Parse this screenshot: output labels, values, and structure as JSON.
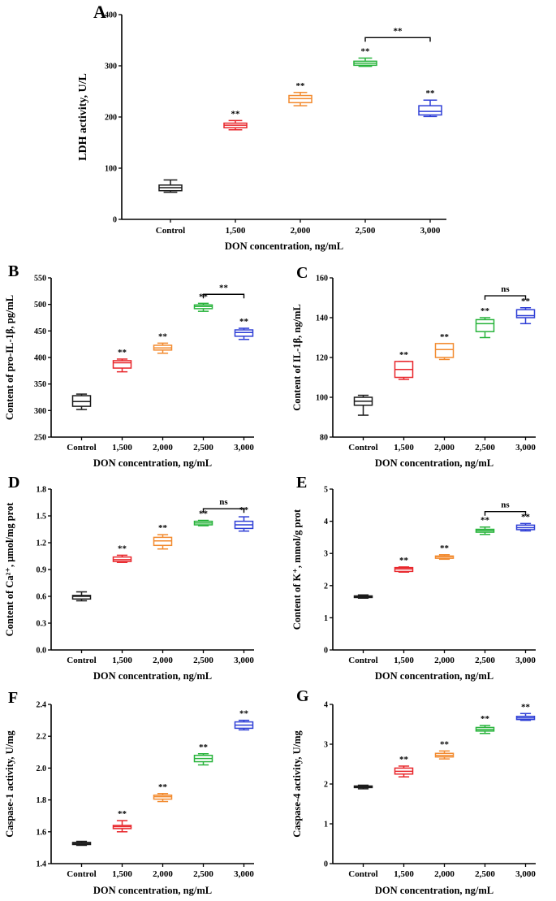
{
  "colors": {
    "Control": "#1a1a1a",
    "1,500": "#e8262b",
    "2,000": "#f28a2e",
    "2,500": "#27b33a",
    "3,000": "#2f3fd6",
    "axis": "#000000"
  },
  "chart_data": [
    {
      "id": "A",
      "panel_label": "A",
      "type": "box",
      "ylabel": "LDH activity, U/L",
      "xlabel": "DON concentration,  ng/mL",
      "categories": [
        "Control",
        "1,500",
        "2,000",
        "2,500",
        "3,000"
      ],
      "ylim": [
        0,
        400
      ],
      "yticks": [
        "0",
        "100",
        "200",
        "300",
        "400"
      ],
      "boxes": [
        {
          "min": 53,
          "q1": 56,
          "median": 62,
          "q3": 67,
          "max": 77
        },
        {
          "min": 175,
          "q1": 179,
          "median": 184,
          "q3": 188,
          "max": 193
        },
        {
          "min": 222,
          "q1": 228,
          "median": 236,
          "q3": 242,
          "max": 248
        },
        {
          "min": 299,
          "q1": 301,
          "median": 305,
          "q3": 309,
          "max": 315
        },
        {
          "min": 201,
          "q1": 204,
          "median": 211,
          "q3": 222,
          "max": 233
        }
      ],
      "labels": [
        "",
        "**",
        "**",
        "**",
        "**"
      ],
      "comparison": {
        "from": 3,
        "to": 4,
        "y": 355,
        "label": "**"
      }
    },
    {
      "id": "B",
      "panel_label": "B",
      "type": "box",
      "ylabel": "Content of pro-IL-1β, pg/mL",
      "xlabel": "DON concentration,  ng/mL",
      "categories": [
        "Control",
        "1,500",
        "2,000",
        "2,500",
        "3,000"
      ],
      "ylim": [
        250,
        550
      ],
      "yticks": [
        "250",
        "300",
        "350",
        "400",
        "450",
        "500",
        "550"
      ],
      "boxes": [
        {
          "min": 302,
          "q1": 308,
          "median": 317,
          "q3": 328,
          "max": 331
        },
        {
          "min": 373,
          "q1": 380,
          "median": 390,
          "q3": 394,
          "max": 397
        },
        {
          "min": 408,
          "q1": 414,
          "median": 418,
          "q3": 423,
          "max": 427
        },
        {
          "min": 487,
          "q1": 492,
          "median": 496,
          "q3": 499,
          "max": 502
        },
        {
          "min": 434,
          "q1": 440,
          "median": 447,
          "q3": 452,
          "max": 455
        }
      ],
      "labels": [
        "",
        "**",
        "**",
        "**",
        "**"
      ],
      "comparison": {
        "from": 3,
        "to": 4,
        "y": 519,
        "label": "**"
      }
    },
    {
      "id": "C",
      "panel_label": "C",
      "type": "box",
      "ylabel": "Content of IL-1β, ng/mL",
      "xlabel": "DON concentration,  ng/mL",
      "categories": [
        "Control",
        "1,500",
        "2,000",
        "2,500",
        "3,000"
      ],
      "ylim": [
        80,
        160
      ],
      "yticks": [
        "80",
        "100",
        "120",
        "140",
        "160"
      ],
      "boxes": [
        {
          "min": 91,
          "q1": 96,
          "median": 98,
          "q3": 100,
          "max": 101
        },
        {
          "min": 109,
          "q1": 110,
          "median": 114,
          "q3": 118,
          "max": 118
        },
        {
          "min": 119,
          "q1": 120,
          "median": 124,
          "q3": 127,
          "max": 127
        },
        {
          "min": 130,
          "q1": 133,
          "median": 137,
          "q3": 139,
          "max": 140
        },
        {
          "min": 137,
          "q1": 140,
          "median": 141,
          "q3": 144,
          "max": 145
        }
      ],
      "labels": [
        "",
        "**",
        "**",
        "**",
        "**"
      ],
      "comparison": {
        "from": 3,
        "to": 4,
        "y": 151,
        "label": "ns"
      }
    },
    {
      "id": "D",
      "panel_label": "D",
      "type": "box",
      "ylabel": "Content of Ca²⁺,  μmol/mg prot",
      "xlabel": "DON concentration,  ng/mL",
      "categories": [
        "Control",
        "1,500",
        "2,000",
        "2,500",
        "3,000"
      ],
      "ylim": [
        0,
        1.8
      ],
      "yticks": [
        "0.0",
        "0.3",
        "0.6",
        "0.9",
        "1.2",
        "1.5",
        "1.8"
      ],
      "boxes": [
        {
          "min": 0.55,
          "q1": 0.57,
          "median": 0.6,
          "q3": 0.61,
          "max": 0.65
        },
        {
          "min": 0.98,
          "q1": 0.99,
          "median": 1.01,
          "q3": 1.04,
          "max": 1.06
        },
        {
          "min": 1.13,
          "q1": 1.17,
          "median": 1.22,
          "q3": 1.26,
          "max": 1.29
        },
        {
          "min": 1.39,
          "q1": 1.4,
          "median": 1.42,
          "q3": 1.44,
          "max": 1.45
        },
        {
          "min": 1.33,
          "q1": 1.36,
          "median": 1.4,
          "q3": 1.44,
          "max": 1.49
        }
      ],
      "labels": [
        "",
        "**",
        "**",
        "**",
        "**"
      ],
      "comparison": {
        "from": 3,
        "to": 4,
        "y": 1.58,
        "label": "ns"
      }
    },
    {
      "id": "E",
      "panel_label": "E",
      "type": "box",
      "ylabel": "Content of K⁺,  mmol/g prot",
      "xlabel": "DON concentration,  ng/mL",
      "categories": [
        "Control",
        "1,500",
        "2,000",
        "2,500",
        "3,000"
      ],
      "ylim": [
        0,
        5
      ],
      "yticks": [
        "0",
        "1",
        "2",
        "3",
        "4",
        "5"
      ],
      "boxes": [
        {
          "min": 1.61,
          "q1": 1.63,
          "median": 1.65,
          "q3": 1.68,
          "max": 1.71
        },
        {
          "min": 2.42,
          "q1": 2.44,
          "median": 2.52,
          "q3": 2.56,
          "max": 2.58
        },
        {
          "min": 2.82,
          "q1": 2.85,
          "median": 2.9,
          "q3": 2.92,
          "max": 2.96
        },
        {
          "min": 3.59,
          "q1": 3.66,
          "median": 3.71,
          "q3": 3.75,
          "max": 3.82
        },
        {
          "min": 3.7,
          "q1": 3.74,
          "median": 3.8,
          "q3": 3.88,
          "max": 3.93
        }
      ],
      "labels": [
        "",
        "**",
        "**",
        "**",
        "**"
      ],
      "comparison": {
        "from": 3,
        "to": 4,
        "y": 4.3,
        "label": "ns"
      }
    },
    {
      "id": "F",
      "panel_label": "F",
      "type": "box",
      "ylabel": "Caspase-1 activity, U/mg",
      "xlabel": "DON concentration,  ng/mL",
      "categories": [
        "Control",
        "1,500",
        "2,000",
        "2,500",
        "3,000"
      ],
      "ylim": [
        1.4,
        2.4
      ],
      "yticks": [
        "1.4",
        "1.6",
        "1.8",
        "2.0",
        "2.2",
        "2.4"
      ],
      "boxes": [
        {
          "min": 1.515,
          "q1": 1.52,
          "median": 1.527,
          "q3": 1.533,
          "max": 1.54
        },
        {
          "min": 1.6,
          "q1": 1.62,
          "median": 1.632,
          "q3": 1.64,
          "max": 1.67
        },
        {
          "min": 1.79,
          "q1": 1.805,
          "median": 1.82,
          "q3": 1.83,
          "max": 1.84
        },
        {
          "min": 2.02,
          "q1": 2.04,
          "median": 2.06,
          "q3": 2.08,
          "max": 2.09
        },
        {
          "min": 2.24,
          "q1": 2.25,
          "median": 2.27,
          "q3": 2.29,
          "max": 2.3
        }
      ],
      "labels": [
        "",
        "**",
        "**",
        "**",
        "**"
      ],
      "comparison": null
    },
    {
      "id": "G",
      "panel_label": "G",
      "type": "box",
      "ylabel": "Caspase-4 activity, U/mg",
      "xlabel": "DON concentration,  ng/mL",
      "categories": [
        "Control",
        "1,500",
        "2,000",
        "2,500",
        "3,000"
      ],
      "ylim": [
        0,
        4
      ],
      "yticks": [
        "0",
        "1",
        "2",
        "3",
        "4"
      ],
      "boxes": [
        {
          "min": 1.88,
          "q1": 1.91,
          "median": 1.93,
          "q3": 1.95,
          "max": 1.97
        },
        {
          "min": 2.18,
          "q1": 2.25,
          "median": 2.32,
          "q3": 2.4,
          "max": 2.45
        },
        {
          "min": 2.63,
          "q1": 2.68,
          "median": 2.72,
          "q3": 2.77,
          "max": 2.83
        },
        {
          "min": 3.27,
          "q1": 3.33,
          "median": 3.37,
          "q3": 3.42,
          "max": 3.47
        },
        {
          "min": 3.6,
          "q1": 3.62,
          "median": 3.66,
          "q3": 3.7,
          "max": 3.77
        }
      ],
      "labels": [
        "",
        "**",
        "**",
        "**",
        "**"
      ],
      "comparison": null
    }
  ]
}
